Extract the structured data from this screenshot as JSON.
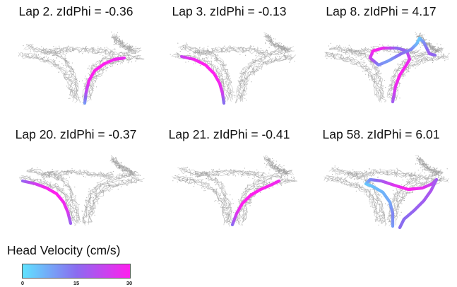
{
  "panels": [
    {
      "title": "Lap 2.  zIdPhi = -0.36"
    },
    {
      "title": "Lap 3.  zIdPhi = -0.13"
    },
    {
      "title": "Lap 8.  zIdPhi = 4.17"
    },
    {
      "title": "Lap 20.  zIdPhi = -0.37"
    },
    {
      "title": "Lap 21.  zIdPhi = -0.41"
    },
    {
      "title": "Lap 58.  zIdPhi = 6.01"
    }
  ],
  "legend": {
    "title": "Head Velocity (cm/s)",
    "ticks": [
      "0",
      "15",
      "30"
    ],
    "color_low": "#5fe3ff",
    "color_mid": "#8a6cf0",
    "color_high": "#ff1fee"
  },
  "colors": {
    "track": "#9a9a9a",
    "background": "#ffffff"
  }
}
